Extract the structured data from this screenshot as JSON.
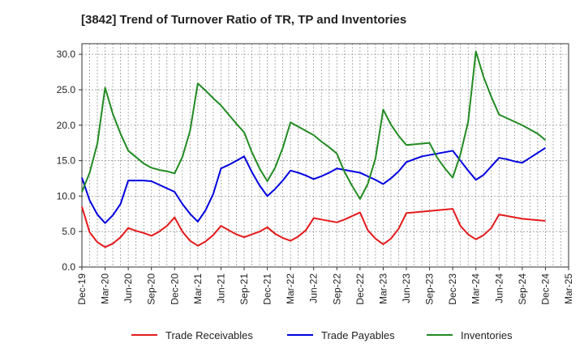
{
  "chart_data": {
    "type": "line",
    "title": "[3842]  Trend of Turnover Ratio of TR, TP and Inventories",
    "xlabel": "",
    "ylabel": "",
    "ylim": [
      0,
      31.5
    ],
    "yticks": [
      "0.0",
      "5.0",
      "10.0",
      "15.0",
      "20.0",
      "25.0",
      "30.0"
    ],
    "ytick_values": [
      0,
      5,
      10,
      15,
      20,
      25,
      30
    ],
    "x_labels": [
      "Dec-19",
      "Mar-20",
      "Jun-20",
      "Sep-20",
      "Dec-20",
      "Mar-21",
      "Jun-21",
      "Sep-21",
      "Dec-21",
      "Mar-22",
      "Jun-22",
      "Sep-22",
      "Dec-22",
      "Mar-23",
      "Jun-23",
      "Sep-23",
      "Dec-23",
      "Mar-24",
      "Jun-24",
      "Sep-24",
      "Dec-24",
      "Mar-25"
    ],
    "grid": true,
    "legend_position": "bottom",
    "x": [
      "Dec-19",
      "Jan-20",
      "Feb-20",
      "Mar-20",
      "Apr-20",
      "May-20",
      "Jun-20",
      "Jul-20",
      "Aug-20",
      "Sep-20",
      "Oct-20",
      "Nov-20",
      "Dec-20",
      "Jan-21",
      "Feb-21",
      "Mar-21",
      "Apr-21",
      "May-21",
      "Jun-21",
      "Jul-21",
      "Aug-21",
      "Sep-21",
      "Oct-21",
      "Nov-21",
      "Dec-21",
      "Jan-22",
      "Feb-22",
      "Mar-22",
      "Apr-22",
      "May-22",
      "Jun-22",
      "Jul-22",
      "Aug-22",
      "Sep-22",
      "Oct-22",
      "Nov-22",
      "Dec-22",
      "Jan-23",
      "Feb-23",
      "Mar-23",
      "Apr-23",
      "May-23",
      "Jun-23",
      "Jul-23",
      "Aug-23",
      "Sep-23",
      "Oct-23",
      "Nov-23",
      "Dec-23",
      "Jan-24",
      "Feb-24",
      "Mar-24",
      "Apr-24",
      "May-24",
      "Jun-24",
      "Jul-24",
      "Aug-24",
      "Sep-24",
      "Oct-24",
      "Nov-24",
      "Dec-24"
    ],
    "series": [
      {
        "name": "Trade Receivables",
        "color": "#e41a1c",
        "values": [
          8.5,
          4.9,
          3.5,
          2.8,
          3.3,
          4.2,
          5.5,
          5.1,
          4.8,
          4.4,
          5.0,
          5.8,
          7.0,
          5.0,
          3.7,
          3.0,
          3.6,
          4.5,
          5.8,
          5.2,
          4.6,
          4.2,
          4.6,
          5.0,
          5.6,
          4.7,
          4.1,
          3.7,
          4.3,
          5.2,
          6.9,
          6.7,
          6.5,
          6.3,
          6.7,
          7.2,
          7.7,
          5.2,
          4.0,
          3.2,
          4.0,
          5.4,
          7.6,
          7.7,
          7.8,
          7.9,
          8.0,
          8.1,
          8.2,
          5.8,
          4.6,
          3.9,
          4.5,
          5.5,
          7.4,
          7.2,
          7.0,
          6.8,
          6.7,
          6.6,
          6.5
        ]
      },
      {
        "name": "Trade Payables",
        "color": "#0000e0",
        "values": [
          12.6,
          9.4,
          7.4,
          6.2,
          7.3,
          8.9,
          12.2,
          12.2,
          12.2,
          12.1,
          11.6,
          11.1,
          10.6,
          8.9,
          7.5,
          6.4,
          8.0,
          10.3,
          13.9,
          14.4,
          15.0,
          15.6,
          13.4,
          11.5,
          10.0,
          11.0,
          12.2,
          13.6,
          13.3,
          12.9,
          12.4,
          12.8,
          13.3,
          13.9,
          13.7,
          13.5,
          13.3,
          12.8,
          12.3,
          11.7,
          12.5,
          13.5,
          14.8,
          15.2,
          15.6,
          15.8,
          16.0,
          16.2,
          16.4,
          15.0,
          13.6,
          12.3,
          13.0,
          14.2,
          15.4,
          15.2,
          14.9,
          14.7,
          15.4,
          16.1,
          16.8
        ]
      },
      {
        "name": "Inventories",
        "color": "#228b22",
        "values": [
          10.6,
          13.3,
          17.4,
          25.3,
          21.6,
          18.8,
          16.4,
          15.5,
          14.6,
          14.0,
          13.7,
          13.5,
          13.2,
          15.5,
          19.2,
          25.9,
          24.9,
          23.8,
          22.8,
          21.5,
          20.2,
          19.0,
          16.2,
          13.9,
          12.1,
          14.0,
          16.8,
          20.4,
          19.8,
          19.2,
          18.6,
          17.7,
          16.9,
          16.0,
          13.4,
          11.4,
          9.6,
          11.7,
          15.3,
          22.2,
          20.1,
          18.5,
          17.2,
          17.3,
          17.4,
          17.5,
          15.4,
          13.9,
          12.6,
          15.9,
          20.5,
          30.4,
          26.8,
          24.0,
          21.5,
          21.0,
          20.5,
          20.0,
          19.4,
          18.8,
          17.9
        ]
      }
    ]
  }
}
